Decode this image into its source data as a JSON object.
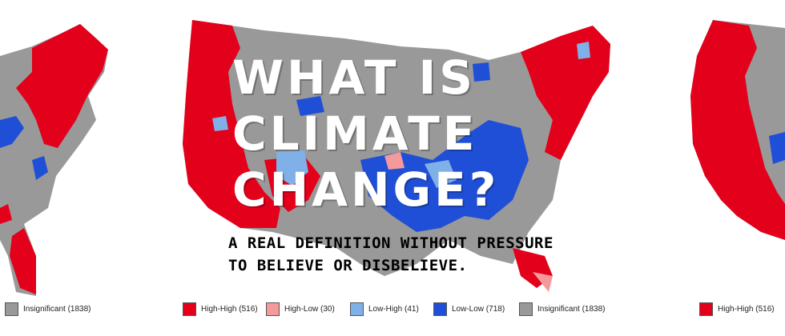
{
  "title": {
    "line1": "WHAT IS",
    "line2": "CLIMATE",
    "line3": "CHANGE?"
  },
  "subtitle": {
    "line1": "A REAL DEFINITION WITHOUT PRESSURE",
    "line2": "TO BELIEVE OR DISBELIEVE."
  },
  "legend": [
    {
      "label": "Insignificant (1838)",
      "color": "#999999"
    },
    {
      "label": "High-High (516)",
      "color": "#e3001b"
    },
    {
      "label": "High-Low (30)",
      "color": "#f49a9a"
    },
    {
      "label": "Low-High (41)",
      "color": "#7fb0e8"
    },
    {
      "label": "Low-Low (718)",
      "color": "#1f4fd6"
    },
    {
      "label": "Insignificant (1838)",
      "color": "#999999"
    },
    {
      "label": "High-High (516)",
      "color": "#e3001b"
    }
  ],
  "colors": {
    "high_high": "#e3001b",
    "high_low": "#f49a9a",
    "low_high": "#7fb0e8",
    "low_low": "#1f4fd6",
    "insignificant": "#999999"
  }
}
